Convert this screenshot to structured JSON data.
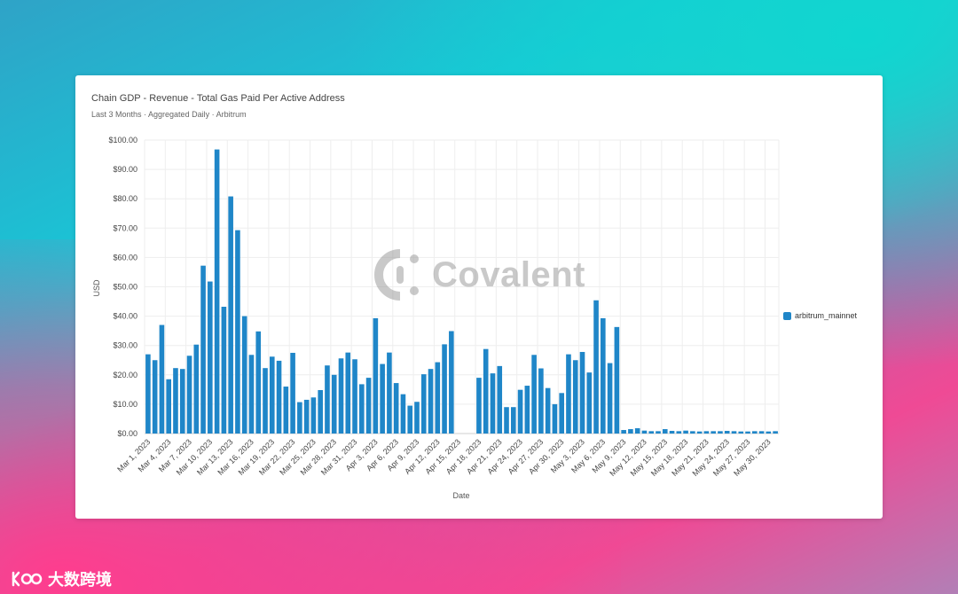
{
  "chart_data": {
    "type": "bar",
    "title": "Chain GDP - Revenue - Total Gas Paid Per Active Address",
    "subtitle": "Last 3 Months · Aggregated Daily · Arbitrum",
    "xlabel": "Date",
    "ylabel": "USD",
    "ylim": [
      0,
      100
    ],
    "y_ticks": [
      "$0.00",
      "$10.00",
      "$20.00",
      "$30.00",
      "$40.00",
      "$50.00",
      "$60.00",
      "$70.00",
      "$80.00",
      "$90.00",
      "$100.00"
    ],
    "x_tick_labels": [
      "Mar 1, 2023",
      "Mar 4, 2023",
      "Mar 7, 2023",
      "Mar 10, 2023",
      "Mar 13, 2023",
      "Mar 16, 2023",
      "Mar 19, 2023",
      "Mar 22, 2023",
      "Mar 25, 2023",
      "Mar 28, 2023",
      "Mar 31, 2023",
      "Apr 3, 2023",
      "Apr 6, 2023",
      "Apr 9, 2023",
      "Apr 12, 2023",
      "Apr 15, 2023",
      "Apr 18, 2023",
      "Apr 21, 2023",
      "Apr 24, 2023",
      "Apr 27, 2023",
      "Apr 30, 2023",
      "May 3, 2023",
      "May 6, 2023",
      "May 9, 2023",
      "May 12, 2023",
      "May 15, 2023",
      "May 18, 2023",
      "May 21, 2023",
      "May 24, 2023",
      "May 27, 2023",
      "May 30, 2023"
    ],
    "grid": true,
    "legend_position": "right",
    "series": [
      {
        "name": "arbitrum_mainnet",
        "color": "#1f86c8",
        "values": [
          27,
          25,
          37,
          18.5,
          22.3,
          22,
          26.5,
          30.3,
          57.2,
          51.8,
          96.8,
          43.2,
          80.8,
          69.3,
          40,
          26.8,
          34.8,
          22.3,
          26.2,
          24.8,
          16,
          27.5,
          10.7,
          11.5,
          12.3,
          14.8,
          23.2,
          20,
          25.6,
          27.6,
          25.3,
          16.8,
          19,
          39.3,
          23.7,
          27.6,
          17.2,
          13.4,
          9.5,
          10.8,
          20.2,
          22,
          24.3,
          30.4,
          34.9,
          null,
          null,
          null,
          19,
          28.8,
          20.5,
          23,
          9,
          9,
          14.9,
          16.3,
          26.8,
          22.2,
          15.5,
          10,
          13.8,
          27,
          25,
          27.8,
          20.8,
          45.4,
          39.3,
          24,
          36.3,
          1.2,
          1.5,
          1.8,
          1,
          0.8,
          0.8,
          1.5,
          0.9,
          0.8,
          1,
          0.8,
          0.7,
          0.8,
          0.8,
          0.8,
          0.9,
          0.8,
          0.7,
          0.7,
          0.8,
          0.8,
          0.7,
          0.8
        ]
      }
    ]
  },
  "watermark": {
    "text": "Covalent",
    "icon": "covalent-logo-icon"
  },
  "footer": {
    "text": "大数跨境",
    "icon": "dashuju-logo-icon"
  }
}
